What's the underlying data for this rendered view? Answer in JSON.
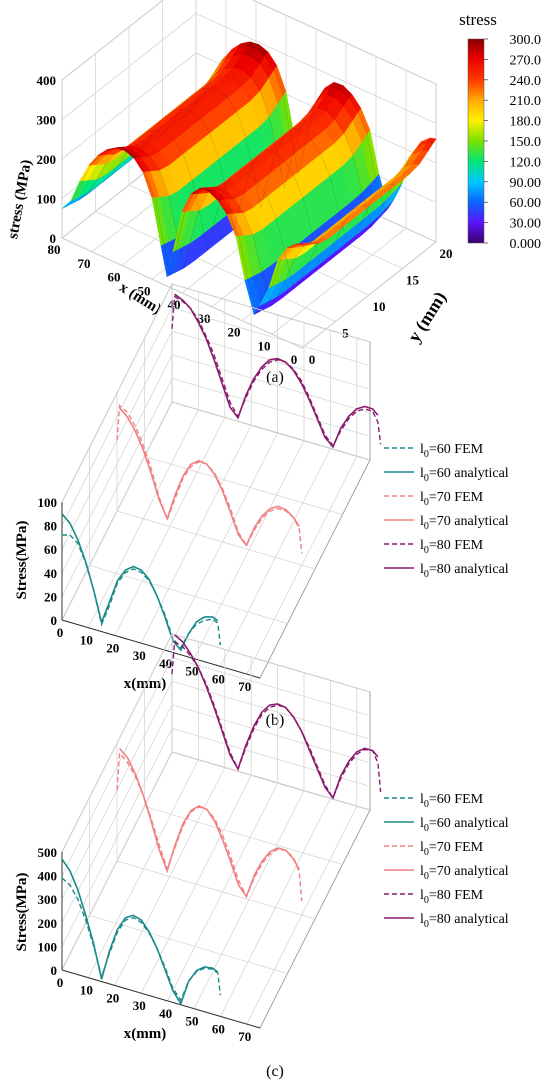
{
  "chart_data": [
    {
      "type": "surface3d",
      "caption": "(a)",
      "xlabel": "x (mm)",
      "ylabel": "y (mm)",
      "zlabel": "stress (MPa)",
      "x_ticks": [
        "0",
        "10",
        "20",
        "30",
        "40",
        "50",
        "60",
        "70",
        "80"
      ],
      "y_ticks": [
        "0",
        "5",
        "10",
        "15",
        "20"
      ],
      "z_ticks": [
        "0",
        "100",
        "200",
        "300",
        "400"
      ],
      "xlim": [
        0,
        80
      ],
      "ylim": [
        0,
        20
      ],
      "zlim": [
        0,
        400
      ],
      "colorbar": {
        "title": "stress",
        "ticks": [
          "0.000",
          "30.00",
          "60.00",
          "90.00",
          "120.0",
          "150.0",
          "180.0",
          "210.0",
          "240.0",
          "270.0",
          "300.0"
        ],
        "range": [
          0,
          300
        ],
        "colors": [
          "#3a006a",
          "#5a14ff",
          "#0a64ff",
          "#00c8ff",
          "#00e676",
          "#7be000",
          "#fff000",
          "#ffaa00",
          "#ff3a00",
          "#ee0000",
          "#8a0000"
        ]
      },
      "surface_profile": {
        "x": [
          0,
          2,
          5,
          8,
          11,
          14,
          16,
          19,
          22,
          25,
          28,
          31,
          34,
          37,
          40,
          43,
          45,
          47,
          50,
          53,
          56,
          59,
          62,
          65,
          68,
          71,
          74,
          77,
          80
        ],
        "stress": [
          225,
          220,
          200,
          160,
          100,
          45,
          15,
          90,
          170,
          215,
          240,
          252,
          250,
          225,
          170,
          80,
          10,
          80,
          170,
          225,
          250,
          258,
          255,
          240,
          215,
          180,
          130,
          90,
          60
        ],
        "edge_rise_at_y_ends": true
      }
    },
    {
      "type": "line3d",
      "caption": "(b)",
      "xlabel": "x(mm)",
      "zlabel": "Stress(MPa)",
      "x_ticks": [
        "0",
        "10",
        "20",
        "30",
        "40",
        "50",
        "60",
        "70"
      ],
      "z_ticks": [
        "0",
        "20",
        "40",
        "60",
        "80",
        "100"
      ],
      "xlim": [
        0,
        75
      ],
      "zlim": [
        0,
        100
      ],
      "series": [
        {
          "name": "l0=60 FEM",
          "label_main": "l",
          "label_sub": "0",
          "label_rest": "=60 FEM",
          "color": "#1b8a8a",
          "dash": true,
          "x": [
            0,
            3,
            6,
            9,
            12,
            15,
            18,
            21,
            24,
            27,
            30,
            33,
            36,
            39,
            42,
            45,
            48,
            51,
            54,
            57,
            59,
            60
          ],
          "values": [
            72,
            74,
            69,
            54,
            33,
            6,
            24,
            45,
            56,
            61,
            60,
            55,
            44,
            30,
            12,
            6,
            20,
            30,
            35,
            38,
            36,
            18
          ]
        },
        {
          "name": "l0=60 analytical",
          "label_main": "l",
          "label_sub": "0",
          "label_rest": "=60 analytical",
          "color": "#1b8a8a",
          "dash": false,
          "x": [
            0,
            3,
            6,
            9,
            12,
            15,
            18,
            21,
            24,
            27,
            30,
            33,
            36,
            39,
            42,
            45,
            48,
            51,
            54,
            57,
            59
          ],
          "values": [
            90,
            84,
            72,
            55,
            33,
            8,
            27,
            47,
            58,
            63,
            62,
            56,
            44,
            28,
            10,
            4,
            20,
            32,
            38,
            40,
            38
          ]
        },
        {
          "name": "l0=70 FEM",
          "label_main": "l",
          "label_sub": "0",
          "label_rest": "=70 FEM",
          "color": "#f08080",
          "dash": true,
          "x": [
            0,
            1,
            4,
            7,
            10,
            13,
            16,
            19,
            22,
            25,
            28,
            31,
            34,
            37,
            40,
            43,
            46,
            49,
            52,
            55,
            58,
            61,
            64,
            67,
            69,
            70
          ],
          "values": [
            60,
            90,
            86,
            76,
            62,
            44,
            22,
            5,
            25,
            44,
            56,
            62,
            62,
            56,
            45,
            30,
            12,
            3,
            18,
            30,
            38,
            42,
            42,
            38,
            30,
            10
          ]
        },
        {
          "name": "l0=70 analytical",
          "label_main": "l",
          "label_sub": "0",
          "label_rest": "=70 analytical",
          "color": "#f08080",
          "dash": false,
          "x": [
            1,
            4,
            7,
            10,
            13,
            16,
            19,
            22,
            25,
            28,
            31,
            34,
            37,
            40,
            43,
            46,
            49,
            52,
            55,
            58,
            61,
            64,
            67,
            69
          ],
          "values": [
            88,
            82,
            72,
            58,
            40,
            20,
            6,
            28,
            46,
            58,
            63,
            62,
            55,
            43,
            27,
            10,
            3,
            20,
            32,
            40,
            44,
            43,
            38,
            32
          ]
        },
        {
          "name": "l0=80 FEM",
          "label_main": "l",
          "label_sub": "0",
          "label_rest": "=80 FEM",
          "color": "#8a1a6e",
          "dash": true,
          "x": [
            0,
            1,
            4,
            7,
            10,
            13,
            16,
            19,
            22,
            25,
            28,
            31,
            34,
            37,
            40,
            43,
            46,
            49,
            52,
            55,
            58,
            61,
            64,
            67,
            70,
            73,
            76,
            78,
            79
          ],
          "values": [
            62,
            90,
            88,
            84,
            76,
            64,
            50,
            32,
            14,
            4,
            22,
            38,
            50,
            58,
            62,
            62,
            58,
            50,
            38,
            24,
            10,
            3,
            18,
            30,
            38,
            42,
            42,
            34,
            16
          ]
        },
        {
          "name": "l0=80 analytical",
          "label_main": "l",
          "label_sub": "0",
          "label_rest": "=80 analytical",
          "color": "#8a1a6e",
          "dash": false,
          "x": [
            1,
            4,
            7,
            10,
            13,
            16,
            19,
            22,
            25,
            28,
            31,
            34,
            37,
            40,
            43,
            46,
            49,
            52,
            55,
            58,
            61,
            64,
            67,
            70,
            73,
            76,
            78
          ],
          "values": [
            92,
            89,
            84,
            74,
            62,
            46,
            28,
            10,
            3,
            24,
            40,
            52,
            60,
            63,
            62,
            57,
            48,
            36,
            22,
            8,
            2,
            20,
            32,
            40,
            44,
            44,
            40
          ]
        }
      ]
    },
    {
      "type": "line3d",
      "caption": "(c)",
      "xlabel": "x(mm)",
      "zlabel": "Stress(MPa)",
      "x_ticks": [
        "0",
        "10",
        "20",
        "30",
        "40",
        "50",
        "60",
        "70"
      ],
      "z_ticks": [
        "0",
        "100",
        "200",
        "300",
        "400",
        "500"
      ],
      "xlim": [
        0,
        75
      ],
      "zlim": [
        0,
        500
      ],
      "series": [
        {
          "name": "l0=60 FEM",
          "label_main": "l",
          "label_sub": "0",
          "label_rest": "=60 FEM",
          "color": "#1b8a8a",
          "dash": true,
          "x": [
            0,
            3,
            6,
            9,
            12,
            15,
            18,
            21,
            24,
            27,
            30,
            33,
            36,
            39,
            42,
            45,
            48,
            51,
            54,
            57,
            59,
            60
          ],
          "values": [
            390,
            370,
            320,
            240,
            140,
            20,
            130,
            230,
            290,
            310,
            300,
            265,
            210,
            140,
            60,
            20,
            110,
            160,
            185,
            190,
            180,
            90
          ]
        },
        {
          "name": "l0=60 analytical",
          "label_main": "l",
          "label_sub": "0",
          "label_rest": "=60 analytical",
          "color": "#1b8a8a",
          "dash": false,
          "x": [
            0,
            3,
            6,
            9,
            12,
            15,
            18,
            21,
            24,
            27,
            30,
            33,
            36,
            39,
            42,
            45,
            48,
            51,
            54,
            57,
            59
          ],
          "values": [
            470,
            430,
            360,
            260,
            150,
            10,
            140,
            240,
            300,
            320,
            310,
            270,
            210,
            130,
            50,
            5,
            110,
            165,
            190,
            195,
            185
          ]
        },
        {
          "name": "l0=70 FEM",
          "label_main": "l",
          "label_sub": "0",
          "label_rest": "=70 FEM",
          "color": "#f08080",
          "dash": true,
          "x": [
            0,
            1,
            4,
            7,
            10,
            13,
            16,
            19,
            22,
            25,
            28,
            31,
            34,
            37,
            40,
            43,
            46,
            49,
            52,
            55,
            58,
            61,
            64,
            67,
            69,
            70
          ],
          "values": [
            300,
            460,
            430,
            380,
            310,
            220,
            120,
            30,
            130,
            230,
            300,
            330,
            330,
            300,
            240,
            160,
            70,
            10,
            100,
            170,
            220,
            250,
            255,
            230,
            180,
            60
          ]
        },
        {
          "name": "l0=70 analytical",
          "label_main": "l",
          "label_sub": "0",
          "label_rest": "=70 analytical",
          "color": "#f08080",
          "dash": false,
          "x": [
            1,
            4,
            7,
            10,
            13,
            16,
            19,
            22,
            25,
            28,
            31,
            34,
            37,
            40,
            43,
            46,
            49,
            52,
            55,
            58,
            61,
            64,
            67,
            69
          ],
          "values": [
            480,
            450,
            390,
            310,
            210,
            100,
            20,
            140,
            240,
            305,
            335,
            330,
            290,
            220,
            140,
            50,
            10,
            110,
            180,
            230,
            255,
            255,
            225,
            190
          ]
        },
        {
          "name": "l0=80 FEM",
          "label_main": "l",
          "label_sub": "0",
          "label_rest": "=80 FEM",
          "color": "#8a1a6e",
          "dash": true,
          "x": [
            0,
            1,
            4,
            7,
            10,
            13,
            16,
            19,
            22,
            25,
            28,
            31,
            34,
            37,
            40,
            43,
            46,
            49,
            52,
            55,
            58,
            61,
            64,
            67,
            70,
            73,
            76,
            78,
            79
          ],
          "values": [
            330,
            470,
            460,
            430,
            390,
            330,
            250,
            160,
            70,
            10,
            110,
            200,
            270,
            310,
            330,
            330,
            300,
            250,
            190,
            120,
            50,
            5,
            100,
            170,
            220,
            250,
            255,
            210,
            90
          ]
        },
        {
          "name": "l0=80 analytical",
          "label_main": "l",
          "label_sub": "0",
          "label_rest": "=80 analytical",
          "color": "#8a1a6e",
          "dash": false,
          "x": [
            1,
            4,
            7,
            10,
            13,
            16,
            19,
            22,
            25,
            28,
            31,
            34,
            37,
            40,
            43,
            46,
            49,
            52,
            55,
            58,
            61,
            64,
            67,
            70,
            73,
            76,
            78
          ],
          "values": [
            500,
            480,
            440,
            390,
            320,
            240,
            150,
            60,
            10,
            120,
            210,
            280,
            320,
            335,
            330,
            300,
            250,
            180,
            110,
            40,
            5,
            110,
            180,
            230,
            255,
            255,
            235
          ]
        }
      ]
    }
  ]
}
